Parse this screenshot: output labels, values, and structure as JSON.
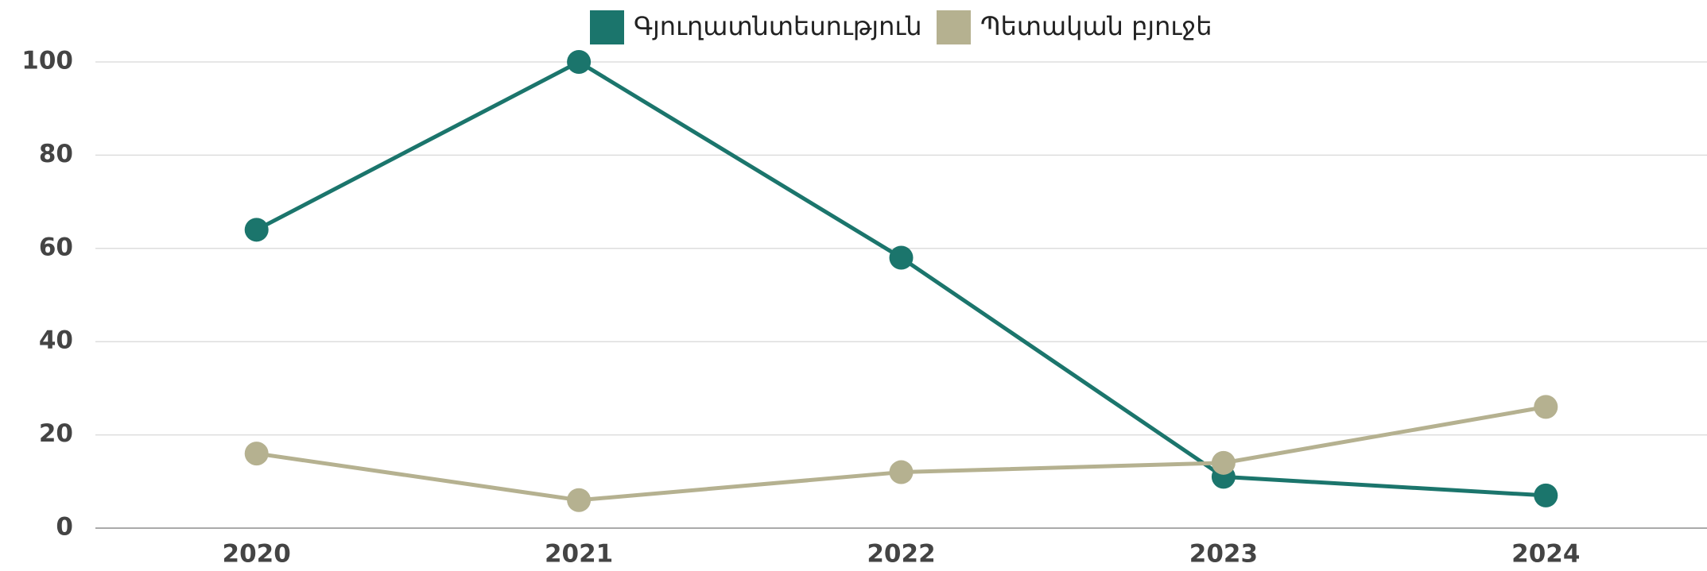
{
  "chart_data": {
    "type": "line",
    "categories": [
      "2020",
      "2021",
      "2022",
      "2023",
      "2024"
    ],
    "series": [
      {
        "name": "Գյուղատնտեսություն",
        "color": "#1b756c",
        "values": [
          64,
          100,
          58,
          11,
          7
        ]
      },
      {
        "name": "Պետական բյուջե",
        "color": "#b5b190",
        "values": [
          16,
          6,
          12,
          14,
          26
        ]
      }
    ],
    "ylim": [
      0,
      100
    ],
    "yticks": [
      0,
      20,
      40,
      60,
      80,
      100
    ],
    "grid": true,
    "legend": "top"
  }
}
